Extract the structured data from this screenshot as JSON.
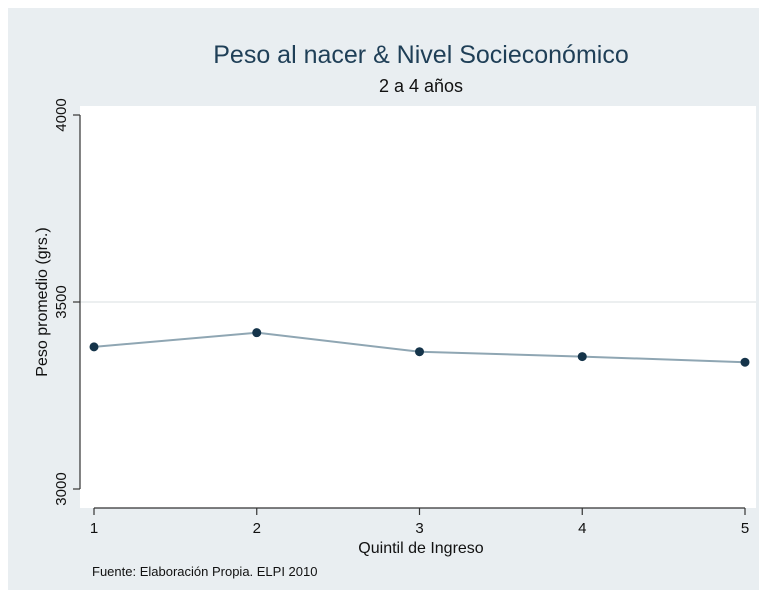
{
  "chart_data": {
    "type": "line",
    "title": "Peso al nacer & Nivel Socieconómico",
    "subtitle": "2 a 4 años",
    "xlabel": "Quintil de Ingreso",
    "ylabel": "Peso promedio (grs.)",
    "x": [
      1,
      2,
      3,
      4,
      5
    ],
    "x_tick_labels": [
      "1",
      "2",
      "3",
      "4",
      "5"
    ],
    "values": [
      3380,
      3418,
      3367,
      3354,
      3339
    ],
    "ylim": [
      3000,
      4000
    ],
    "y_ticks": [
      3000,
      3500,
      4000
    ],
    "y_tick_labels": [
      "3000",
      "3500",
      "4000"
    ],
    "grid": "horizontal at 3500",
    "note": "Fuente: Elaboración Propia. ELPI 2010",
    "colors": {
      "outer_background": "#e9eef1",
      "plot_background": "#ffffff",
      "line": "#8fa6b3",
      "markers": "#15344a",
      "title": "#1f3f57"
    }
  }
}
